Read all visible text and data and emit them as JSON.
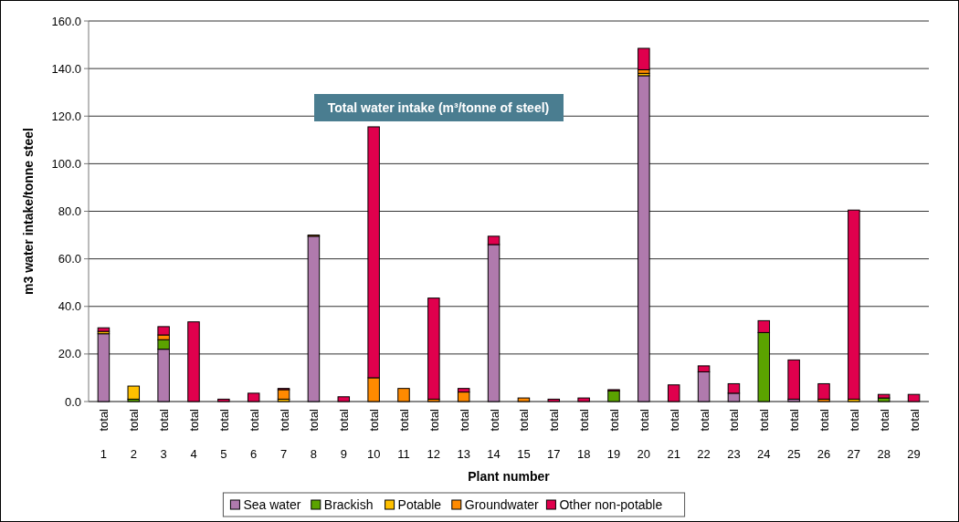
{
  "chart_data": {
    "type": "bar",
    "stacked": true,
    "title": "Total water intake (m³/tonne of steel)",
    "xlabel": "Plant number",
    "ylabel": "m3 water intake/tonne steel",
    "categories": [
      "total\n1",
      "total\n2",
      "total\n3",
      "total\n4",
      "total\n5",
      "total\n6",
      "total\n7",
      "total\n8",
      "total\n9",
      "total\n10",
      "total\n11",
      "total\n12",
      "total\n13",
      "total\n14",
      "total\n15",
      "total\n17",
      "total\n18",
      "total\n19",
      "total\n20",
      "total\n21",
      "total\n22",
      "total\n23",
      "total\n24",
      "total\n25",
      "total\n26",
      "total\n27",
      "total\n28",
      "total\n29"
    ],
    "series": [
      {
        "name": "Sea water",
        "color": "#b07aad",
        "values": [
          28.5,
          0,
          22,
          0,
          0,
          0,
          0,
          69.5,
          0,
          0,
          0,
          0,
          0,
          66,
          0,
          0,
          0,
          0,
          137,
          0,
          12.5,
          3.5,
          0,
          1,
          0,
          0,
          0,
          0
        ]
      },
      {
        "name": "Brackish",
        "color": "#5ba300",
        "values": [
          0,
          1,
          4,
          0,
          0,
          0,
          0,
          0,
          0,
          0,
          0,
          0,
          0,
          0,
          0,
          0,
          0,
          4.5,
          0,
          0,
          0,
          0,
          29,
          0,
          0,
          0,
          1.5,
          0
        ]
      },
      {
        "name": "Potable",
        "color": "#ffc000",
        "values": [
          1,
          5.5,
          0,
          0,
          0,
          0,
          1,
          0,
          0,
          0,
          0,
          0,
          0,
          0,
          0,
          0,
          0,
          0,
          1,
          0,
          0,
          0,
          0,
          0,
          0,
          1,
          0,
          0
        ]
      },
      {
        "name": "Groundwater",
        "color": "#ff8a00",
        "values": [
          0,
          0,
          2,
          0,
          0,
          0,
          4,
          0.5,
          0,
          10,
          5.5,
          1,
          4,
          0,
          1.5,
          0,
          0,
          0,
          1.5,
          0,
          null,
          0,
          0,
          0,
          1,
          0,
          0,
          0
        ]
      },
      {
        "name": "Other non-potable",
        "color": "#e0004d",
        "values": [
          1.5,
          0,
          3.5,
          33.5,
          1,
          3.5,
          0.5,
          0,
          2,
          105.5,
          0,
          42.5,
          1.5,
          3.5,
          0,
          1,
          1.5,
          0.5,
          9,
          7,
          2.5,
          4,
          5,
          16.5,
          6.5,
          79.5,
          1.5,
          3
        ]
      }
    ],
    "ylim": [
      0,
      160
    ],
    "yticks": [
      {
        "value": 0,
        "label": "0.0"
      },
      {
        "value": 20,
        "label": "20.0"
      },
      {
        "value": 40,
        "label": "40.0"
      },
      {
        "value": 60,
        "label": "60.0"
      },
      {
        "value": 80,
        "label": "80.0"
      },
      {
        "value": 100,
        "label": "100.0"
      },
      {
        "value": 120,
        "label": "120.0"
      },
      {
        "value": 140,
        "label": "140.0"
      },
      {
        "value": 160,
        "label": "160.0"
      }
    ],
    "grid": "y",
    "legend": "bottom"
  }
}
